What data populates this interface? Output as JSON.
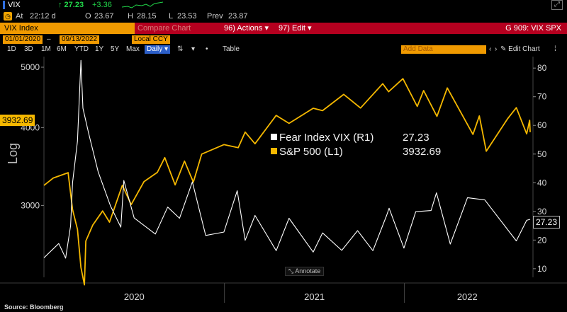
{
  "quote": {
    "ticker": "VIX",
    "last": "↑ 27.23",
    "change": "+3.36",
    "at_label": "At",
    "time": "22:12 d",
    "open_label": "O",
    "open": "23.67",
    "high_label": "H",
    "high": "28.15",
    "low_label": "L",
    "low": "23.53",
    "prev_label": "Prev",
    "prev": "23.87"
  },
  "title_bar": {
    "security": "VIX Index",
    "faint_text": "Compare Chart",
    "actions_label": "96) Actions ▾",
    "edit_label": "97) Edit ▾",
    "function_title": "G 909: VIX SPX"
  },
  "range": {
    "start": "01/01/2020",
    "end": "09/13/2022",
    "currency": "Local CCY"
  },
  "periods": [
    "1D",
    "3D",
    "1M",
    "6M",
    "YTD",
    "1Y",
    "5Y",
    "Max"
  ],
  "frequency": "Daily ▾",
  "table_label": "Table",
  "add_data_label": "Add Data",
  "edit_chart_label": "✎ Edit Chart",
  "annotate_label": "Annotate",
  "source": "Source: Bloomberg",
  "colors": {
    "accent": "#f09a00",
    "title_red": "#b5001f",
    "spx_line": "#f5b800",
    "vix_line": "#ffffff",
    "positive": "#21d84a"
  },
  "chart_data": {
    "type": "line",
    "y_left_label": "Log",
    "y_left_scale": "log",
    "y_left_ticks": [
      3000,
      4000,
      5000
    ],
    "y_left_tick_labels": [
      "3000",
      "4000",
      "5000"
    ],
    "y_left_range": [
      2300,
      5200
    ],
    "y_right_ticks": [
      10,
      20,
      30,
      40,
      50,
      60,
      70,
      80
    ],
    "y_right_range": [
      7,
      84
    ],
    "x_labels": [
      "2020",
      "2021",
      "2022"
    ],
    "x_range": [
      "2020-01-01",
      "2022-09-13"
    ],
    "legend": [
      {
        "name": "Fear Index VIX (R1)",
        "value": "27.23",
        "color": "#ffffff"
      },
      {
        "name": "S&P 500 (L1)",
        "value": "3932.69",
        "color": "#f5b800"
      }
    ],
    "last_value_tags": {
      "spx": "3932.69",
      "vix": "27.23"
    },
    "series": [
      {
        "name": "S&P 500 (L1)",
        "axis": "left",
        "points": [
          [
            "2020-01-01",
            3230
          ],
          [
            "2020-01-20",
            3320
          ],
          [
            "2020-02-19",
            3386
          ],
          [
            "2020-02-28",
            2954
          ],
          [
            "2020-03-09",
            2746
          ],
          [
            "2020-03-16",
            2386
          ],
          [
            "2020-03-23",
            2237
          ],
          [
            "2020-03-26",
            2630
          ],
          [
            "2020-04-09",
            2790
          ],
          [
            "2020-04-29",
            2939
          ],
          [
            "2020-05-13",
            2820
          ],
          [
            "2020-06-08",
            3232
          ],
          [
            "2020-06-26",
            3009
          ],
          [
            "2020-07-22",
            3276
          ],
          [
            "2020-08-18",
            3390
          ],
          [
            "2020-09-02",
            3580
          ],
          [
            "2020-09-23",
            3237
          ],
          [
            "2020-10-12",
            3534
          ],
          [
            "2020-10-30",
            3270
          ],
          [
            "2020-11-16",
            3627
          ],
          [
            "2020-12-31",
            3756
          ],
          [
            "2021-01-29",
            3714
          ],
          [
            "2021-02-12",
            3934
          ],
          [
            "2021-03-04",
            3768
          ],
          [
            "2021-04-16",
            4185
          ],
          [
            "2021-05-12",
            4063
          ],
          [
            "2021-06-30",
            4297
          ],
          [
            "2021-07-19",
            4258
          ],
          [
            "2021-08-31",
            4522
          ],
          [
            "2021-10-04",
            4300
          ],
          [
            "2021-11-18",
            4704
          ],
          [
            "2021-11-30",
            4567
          ],
          [
            "2021-12-29",
            4793
          ],
          [
            "2022-01-27",
            4326
          ],
          [
            "2022-02-09",
            4587
          ],
          [
            "2022-03-08",
            4170
          ],
          [
            "2022-03-29",
            4631
          ],
          [
            "2022-05-20",
            3901
          ],
          [
            "2022-06-02",
            4176
          ],
          [
            "2022-06-16",
            3666
          ],
          [
            "2022-07-29",
            4130
          ],
          [
            "2022-08-16",
            4305
          ],
          [
            "2022-09-06",
            3908
          ],
          [
            "2022-09-12",
            4110
          ],
          [
            "2022-09-13",
            3933
          ]
        ]
      },
      {
        "name": "Fear Index VIX (R1)",
        "axis": "right",
        "points": [
          [
            "2020-01-01",
            13.8
          ],
          [
            "2020-01-31",
            18.8
          ],
          [
            "2020-02-14",
            13.7
          ],
          [
            "2020-02-24",
            25.0
          ],
          [
            "2020-02-28",
            40.1
          ],
          [
            "2020-03-09",
            54.5
          ],
          [
            "2020-03-16",
            82.7
          ],
          [
            "2020-03-20",
            66.0
          ],
          [
            "2020-04-01",
            57.0
          ],
          [
            "2020-04-20",
            43.8
          ],
          [
            "2020-05-15",
            31.9
          ],
          [
            "2020-06-05",
            24.5
          ],
          [
            "2020-06-11",
            40.8
          ],
          [
            "2020-07-02",
            27.7
          ],
          [
            "2020-08-14",
            22.1
          ],
          [
            "2020-09-08",
            31.5
          ],
          [
            "2020-10-02",
            27.6
          ],
          [
            "2020-10-28",
            40.3
          ],
          [
            "2020-11-24",
            21.6
          ],
          [
            "2020-12-31",
            22.8
          ],
          [
            "2021-01-27",
            37.2
          ],
          [
            "2021-02-12",
            19.9
          ],
          [
            "2021-03-04",
            28.6
          ],
          [
            "2021-04-16",
            16.3
          ],
          [
            "2021-05-12",
            27.6
          ],
          [
            "2021-06-30",
            15.8
          ],
          [
            "2021-07-19",
            22.5
          ],
          [
            "2021-08-27",
            16.4
          ],
          [
            "2021-09-28",
            23.3
          ],
          [
            "2021-10-29",
            16.3
          ],
          [
            "2021-11-26",
            28.6
          ],
          [
            "2021-12-01",
            31.1
          ],
          [
            "2021-12-31",
            17.2
          ],
          [
            "2022-01-24",
            29.9
          ],
          [
            "2022-02-24",
            30.3
          ],
          [
            "2022-03-07",
            36.5
          ],
          [
            "2022-04-04",
            18.6
          ],
          [
            "2022-05-09",
            34.8
          ],
          [
            "2022-06-13",
            34.0
          ],
          [
            "2022-08-16",
            19.7
          ],
          [
            "2022-09-06",
            26.9
          ],
          [
            "2022-09-13",
            27.23
          ]
        ]
      }
    ]
  }
}
